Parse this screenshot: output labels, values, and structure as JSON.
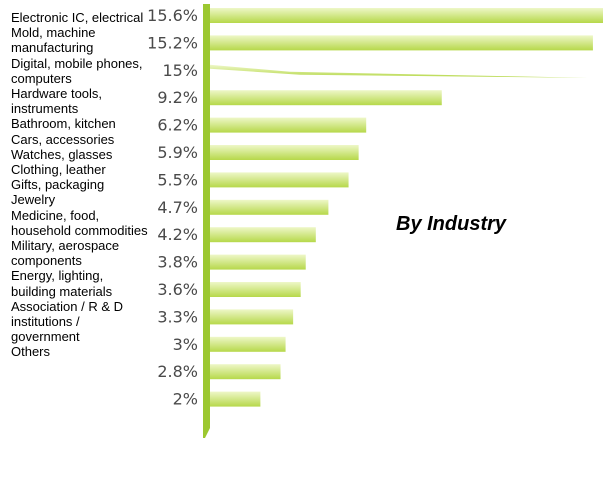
{
  "chart_data": {
    "type": "bar",
    "orientation": "horizontal",
    "title": "By Industry",
    "categories": [
      "Electronic IC, electrical",
      "Mold, machine manufacturing",
      "Digital, mobile phones, computers",
      "Hardware tools, instruments",
      "Bathroom, kitchen",
      "Cars, accessories",
      "Watches, glasses",
      "Clothing, leather",
      "Gifts, packaging",
      "Jewelry",
      "Medicine, food, household commodities",
      "Military, aerospace components",
      "Energy, lighting, building materials",
      "Association / R & D institutions / government",
      "Others"
    ],
    "values": [
      15.6,
      15.2,
      15,
      9.2,
      6.2,
      5.9,
      5.5,
      4.7,
      4.2,
      3.8,
      3.6,
      3.3,
      3,
      2.8,
      2
    ],
    "value_labels": [
      "15.6%",
      "15.2%",
      "15%",
      "9.2%",
      "6.2%",
      "5.9%",
      "5.5%",
      "4.7%",
      "4.2%",
      "3.8%",
      "3.6%",
      "3.3%",
      "3%",
      "2.8%",
      "2%"
    ],
    "xlim": [
      0,
      15.6
    ],
    "grid": false,
    "colors": {
      "bar_top": "#eef7c8",
      "bar_bottom": "#b6d84a",
      "axis": "#9cc830",
      "label": "#4a4a4a"
    }
  }
}
